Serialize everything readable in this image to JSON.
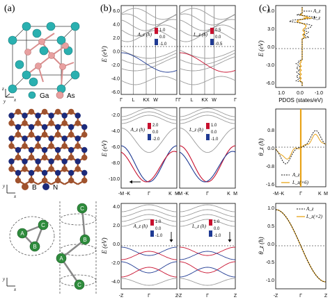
{
  "panel_labels": {
    "a": "(a)",
    "b": "(b)",
    "c": "(c)"
  },
  "structures": {
    "gaas": {
      "legend": [
        {
          "label": "Ga",
          "color": "#2ab0b0"
        },
        {
          "label": "As",
          "color": "#e8a0a0"
        }
      ],
      "axes": {
        "z": "z",
        "x": "x",
        "y": "y"
      }
    },
    "bn": {
      "legend": [
        {
          "label": "B",
          "color": "#a0522d"
        },
        {
          "label": "N",
          "color": "#1c2a7a"
        }
      ],
      "axes": {
        "y": "y",
        "x": "x"
      }
    },
    "chain": {
      "ring_atoms": [
        "A",
        "C",
        "B"
      ],
      "helix_atoms": [
        "C",
        "B",
        "A",
        "C"
      ],
      "atom_color": "#2e8b3c",
      "axes": {
        "y": "y",
        "x": "x"
      }
    }
  },
  "bands": {
    "ylabel": "E (eV)",
    "row1": {
      "yticks": [
        "6.0",
        "4.0",
        "2.0",
        "0.0",
        "-2.0",
        "-4.0",
        "-6.0"
      ],
      "kpath": [
        "Γ",
        "L",
        "KX",
        "W",
        "Γ"
      ],
      "left_cbar": {
        "label": "A_z (ħ)",
        "ticks": [
          "1.0",
          "0.0",
          "-1.0"
        ]
      },
      "right_cbar": {
        "label": "L_z (ħ)",
        "ticks": [
          "0.5",
          "0.0",
          "-0.5"
        ]
      }
    },
    "row2": {
      "yticks": [
        "-2.0",
        "-4.0",
        "-6.0",
        "-8.0",
        "-10.0"
      ],
      "kpath_left": [
        "-M",
        "-K",
        "Γ",
        "K",
        "M"
      ],
      "kpath_right": [
        "-M",
        "-K",
        "Γ",
        "K",
        "M"
      ],
      "left_cbar": {
        "label": "A_z (ħ)",
        "ticks": [
          "2.0",
          "0.0",
          "-2.0"
        ]
      },
      "right_cbar": {
        "label": "L_z (ħ)",
        "ticks": [
          "1.0",
          "0.0",
          "-1.0"
        ]
      }
    },
    "row3": {
      "yticks": [
        "4.0",
        "2.0",
        "0.0",
        "-2.0",
        "-4.0"
      ],
      "kpath": [
        "-Z",
        "Γ",
        "Z"
      ],
      "left_cbar": {
        "label": "A_z (ħ)",
        "ticks": [
          "1.0",
          "0.0",
          "-1.0"
        ]
      },
      "right_cbar": {
        "label": "L_z (ħ)",
        "ticks": [
          "1.0",
          "0.0",
          "-1.0"
        ]
      }
    }
  },
  "panel_c": {
    "top": {
      "ylabel": "E (eV)",
      "xlabel": "PDOS (states/eV)",
      "yticks": [
        "6.0",
        "3.0",
        "0.0",
        "-3.0",
        "-6.0"
      ],
      "xticks": [
        "1.0",
        "0.0",
        "-1.0"
      ],
      "legend": [
        "A_z",
        "L_z"
      ]
    },
    "middle": {
      "ylabel": "θ_z (ħ)",
      "yticks": [
        "0.8",
        "0.0",
        "-0.8",
        "-1.6"
      ],
      "xticks": [
        "-M",
        "-K",
        "Γ",
        "K",
        "M"
      ],
      "legend": [
        "A_z",
        "L_z(×6)"
      ]
    },
    "bottom": {
      "ylabel": "θ_z (ħ)",
      "yticks": [
        "1.0",
        "0.5",
        "0.0",
        "-0.5",
        "-1.0"
      ],
      "xticks": [
        "-Z",
        "Γ",
        "Z"
      ],
      "legend": [
        "A_z",
        "L_z(×2)"
      ]
    }
  },
  "colors": {
    "red": "#c8102e",
    "blue": "#1f3a93",
    "orange": "#e8a317",
    "gray": "#9a9a9a"
  }
}
